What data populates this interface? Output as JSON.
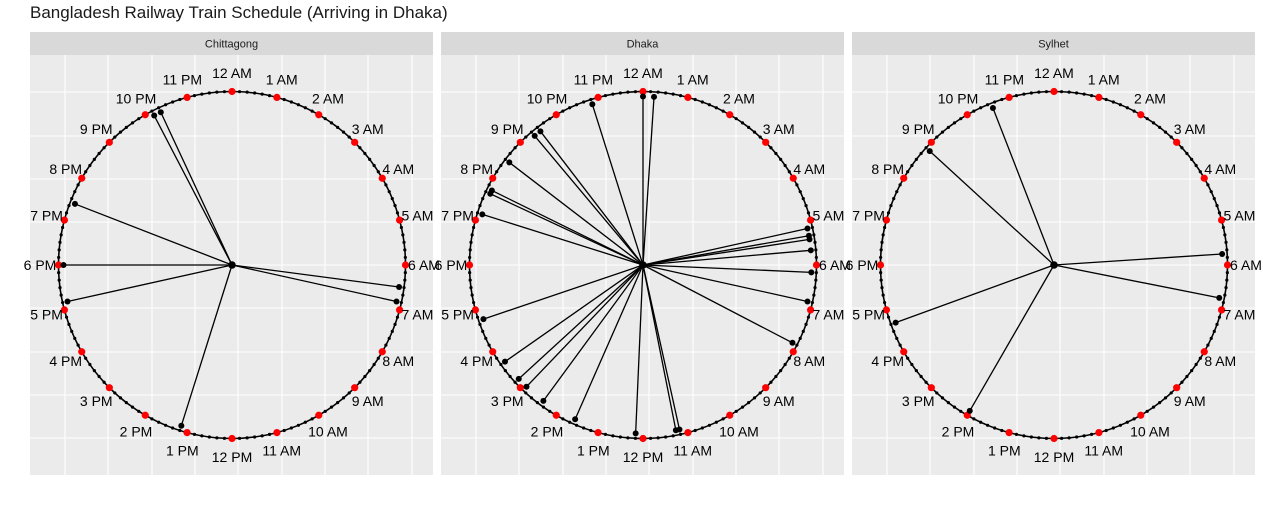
{
  "chart_data": {
    "type": "polar-clock",
    "title": "Bangladesh Railway Train Schedule (Arriving in Dhaka)",
    "hour_labels": [
      "12 AM",
      "1 AM",
      "2 AM",
      "3 AM",
      "4 AM",
      "5 AM",
      "6 AM",
      "7 AM",
      "8 AM",
      "9 AM",
      "10 AM",
      "11 AM",
      "12 PM",
      "1 PM",
      "2 PM",
      "3 PM",
      "4 PM",
      "5 PM",
      "6 PM",
      "7 PM",
      "8 PM",
      "9 PM",
      "10 PM",
      "11 PM"
    ],
    "colors": {
      "panel_bg": "#ebebeb",
      "strip_bg": "#d9d9d9",
      "grid": "#ffffff",
      "hour_marker": "#ff0000",
      "spoke": "#000000"
    },
    "panels": [
      {
        "name": "Chittagong",
        "arrival_times": [
          "22:10",
          "22:20",
          "19:25",
          "18:00",
          "17:10",
          "13:10",
          "06:30",
          "06:50"
        ]
      },
      {
        "name": "Dhaka",
        "arrival_times": [
          "00:00",
          "00:15",
          "22:50",
          "21:20",
          "21:30",
          "20:30",
          "19:40",
          "19:45",
          "19:10",
          "05:10",
          "05:20",
          "05:25",
          "05:40",
          "06:10",
          "06:50",
          "07:50",
          "16:45",
          "15:40",
          "15:10",
          "14:55",
          "14:25",
          "13:35",
          "12:10",
          "11:10",
          "11:15"
        ]
      },
      {
        "name": "Sylhet",
        "arrival_times": [
          "22:35",
          "20:50",
          "16:40",
          "14:00",
          "05:45",
          "06:45"
        ]
      }
    ]
  }
}
